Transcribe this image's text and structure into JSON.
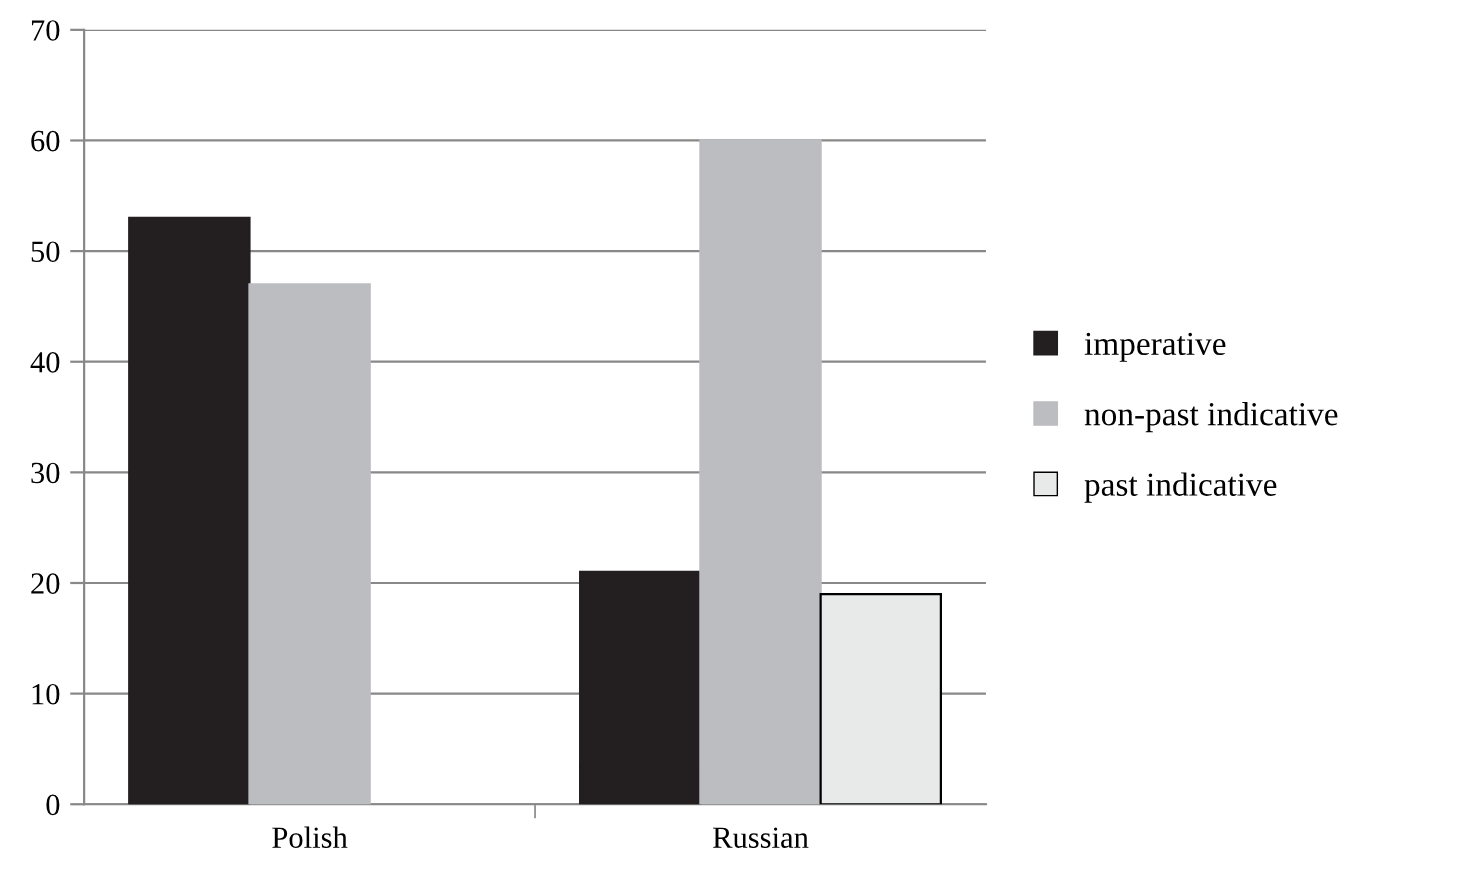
{
  "chart_data": {
    "type": "bar",
    "categories": [
      "Polish",
      "Russian"
    ],
    "series": [
      {
        "name": "imperative",
        "color": "#231f20",
        "values": [
          53,
          21
        ]
      },
      {
        "name": "non-past indicative",
        "color": "#bcbdc0",
        "values": [
          47,
          60
        ]
      },
      {
        "name": "past indicative",
        "color": "#e8e9e9",
        "values": [
          null,
          19
        ]
      }
    ],
    "ylim": [
      0,
      70
    ],
    "yticks": [
      0,
      10,
      20,
      30,
      40,
      50,
      60,
      70
    ],
    "grid": "y",
    "legend": "right"
  }
}
